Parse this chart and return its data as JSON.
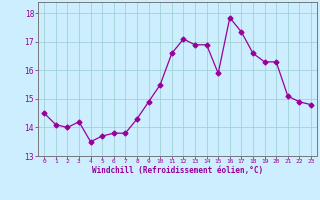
{
  "x": [
    0,
    1,
    2,
    3,
    4,
    5,
    6,
    7,
    8,
    9,
    10,
    11,
    12,
    13,
    14,
    15,
    16,
    17,
    18,
    19,
    20,
    21,
    22,
    23
  ],
  "y": [
    14.5,
    14.1,
    14.0,
    14.2,
    13.5,
    13.7,
    13.8,
    13.8,
    14.3,
    14.9,
    15.5,
    16.6,
    17.1,
    16.9,
    16.9,
    15.9,
    17.85,
    17.35,
    16.6,
    16.3,
    16.3,
    15.1,
    14.9,
    14.8
  ],
  "line_color": "#990099",
  "marker": "D",
  "marker_size": 2.5,
  "bg_color": "#cceeff",
  "grid_color": "#99cccc",
  "tick_color": "#990099",
  "label_color": "#990099",
  "xlabel": "Windchill (Refroidissement éolien,°C)",
  "ylim": [
    13,
    18.4
  ],
  "yticks": [
    13,
    14,
    15,
    16,
    17,
    18
  ],
  "xticks": [
    0,
    1,
    2,
    3,
    4,
    5,
    6,
    7,
    8,
    9,
    10,
    11,
    12,
    13,
    14,
    15,
    16,
    17,
    18,
    19,
    20,
    21,
    22,
    23
  ]
}
